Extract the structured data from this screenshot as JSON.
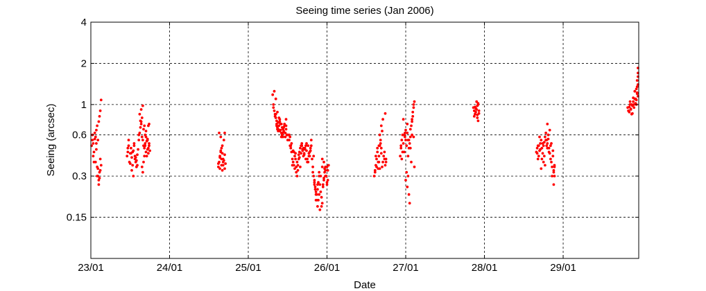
{
  "chart_data": {
    "type": "scatter",
    "title": "Seeing time series (Jan 2006)",
    "xlabel": "Date",
    "ylabel": "Seeing (arcsec)",
    "x_unit": "days (Jan 2006, decimal day-of-month)",
    "xlim": [
      23.0,
      29.96
    ],
    "ylim": [
      0.075,
      4
    ],
    "y_scale": "log2",
    "x_ticks": [
      {
        "value": 23,
        "label": "23/01"
      },
      {
        "value": 24,
        "label": "24/01"
      },
      {
        "value": 25,
        "label": "25/01"
      },
      {
        "value": 26,
        "label": "26/01"
      },
      {
        "value": 27,
        "label": "27/01"
      },
      {
        "value": 28,
        "label": "28/01"
      },
      {
        "value": 29,
        "label": "29/01"
      }
    ],
    "y_ticks": [
      {
        "value": 0.15,
        "label": "0.15"
      },
      {
        "value": 0.3,
        "label": "0.3"
      },
      {
        "value": 0.6,
        "label": "0.6"
      },
      {
        "value": 1,
        "label": "1"
      },
      {
        "value": 2,
        "label": "2"
      },
      {
        "value": 4,
        "label": "4"
      }
    ],
    "grid": true,
    "marker_color": "#ff0000",
    "series": [
      {
        "x": [
          23.01,
          23.02,
          23.03,
          23.04,
          23.05,
          23.06,
          23.07,
          23.08,
          23.09,
          23.1,
          23.11,
          23.12,
          23.02,
          23.04,
          23.06,
          23.08,
          23.1,
          23.12,
          23.13,
          23.03,
          23.05,
          23.07,
          23.09,
          23.11,
          23.08,
          23.1,
          23.11,
          23.12,
          23.13,
          23.07,
          23.09,
          23.46,
          23.47,
          23.48,
          23.49,
          23.5,
          23.51,
          23.52,
          23.53,
          23.54,
          23.55,
          23.56,
          23.57,
          23.58,
          23.59,
          23.6,
          23.48,
          23.5,
          23.52,
          23.54,
          23.56,
          23.58,
          23.47,
          23.51,
          23.55,
          23.59,
          23.53,
          23.57,
          23.61,
          23.62,
          23.63,
          23.64,
          23.65,
          23.66,
          23.67,
          23.68,
          23.69,
          23.7,
          23.71,
          23.72,
          23.73,
          23.74,
          23.75,
          23.62,
          23.64,
          23.66,
          23.68,
          23.7,
          23.72,
          23.74,
          23.63,
          23.65,
          23.67,
          23.69,
          23.71,
          23.73,
          23.65,
          23.67,
          23.66,
          23.68,
          23.64,
          23.7,
          23.72,
          23.73,
          23.74,
          23.61,
          23.69,
          24.62,
          24.63,
          24.64,
          24.65,
          24.66,
          24.67,
          24.68,
          24.69,
          24.7,
          24.71,
          24.63,
          24.65,
          24.67,
          24.69,
          24.64,
          24.66,
          24.68,
          24.7,
          24.65,
          24.67,
          24.66,
          24.62,
          24.7,
          24.64,
          24.68,
          25.31,
          25.32,
          25.33,
          25.34,
          25.35,
          25.36,
          25.37,
          25.38,
          25.39,
          25.4,
          25.41,
          25.42,
          25.43,
          25.44,
          25.45,
          25.46,
          25.47,
          25.48,
          25.49,
          25.5,
          25.32,
          25.34,
          25.36,
          25.38,
          25.4,
          25.42,
          25.44,
          25.46,
          25.48,
          25.5,
          25.33,
          25.35,
          25.37,
          25.39,
          25.41,
          25.43,
          25.45,
          25.47,
          25.36,
          25.38,
          25.4,
          25.37,
          25.39,
          25.35,
          25.42,
          25.44,
          25.48,
          25.52,
          25.53,
          25.54,
          25.55,
          25.56,
          25.57,
          25.58,
          25.59,
          25.6,
          25.61,
          25.62,
          25.63,
          25.64,
          25.65,
          25.66,
          25.67,
          25.68,
          25.69,
          25.7,
          25.71,
          25.72,
          25.73,
          25.74,
          25.75,
          25.76,
          25.77,
          25.78,
          25.79,
          25.8,
          25.53,
          25.55,
          25.57,
          25.59,
          25.61,
          25.63,
          25.65,
          25.67,
          25.69,
          25.71,
          25.73,
          25.75,
          25.77,
          25.79,
          25.54,
          25.58,
          25.62,
          25.66,
          25.7,
          25.74,
          25.78,
          25.56,
          25.6,
          25.64,
          25.68,
          25.72,
          25.76,
          25.52,
          25.8,
          25.81,
          25.82,
          25.83,
          25.84,
          25.85,
          25.86,
          25.87,
          25.88,
          25.89,
          25.9,
          25.91,
          25.92,
          25.93,
          25.94,
          25.95,
          25.96,
          25.97,
          25.98,
          25.99,
          26.0,
          26.01,
          26.02,
          25.82,
          25.84,
          25.86,
          25.88,
          25.9,
          25.92,
          25.94,
          25.96,
          25.98,
          26.0,
          25.83,
          25.85,
          25.87,
          25.89,
          25.91,
          25.93,
          25.95,
          25.97,
          25.99,
          26.01,
          25.86,
          25.88,
          25.84,
          25.9,
          25.94,
          25.96,
          26.0,
          25.98,
          26.6,
          26.61,
          26.62,
          26.63,
          26.64,
          26.65,
          26.66,
          26.67,
          26.68,
          26.69,
          26.7,
          26.71,
          26.72,
          26.73,
          26.74,
          26.75,
          26.61,
          26.63,
          26.65,
          26.67,
          26.69,
          26.71,
          26.73,
          26.75,
          26.62,
          26.66,
          26.7,
          26.74,
          26.67,
          26.68,
          26.66,
          26.69,
          26.64,
          26.93,
          26.94,
          26.95,
          26.96,
          26.97,
          26.98,
          26.99,
          27.0,
          27.01,
          27.02,
          27.03,
          27.04,
          27.05,
          27.06,
          27.07,
          27.08,
          27.09,
          27.1,
          27.11,
          26.94,
          26.96,
          26.98,
          27.0,
          27.02,
          27.04,
          27.06,
          27.08,
          27.1,
          26.95,
          26.99,
          27.03,
          27.07,
          27.11,
          27.0,
          27.02,
          27.04,
          27.01,
          27.03,
          27.06,
          27.08,
          27.09,
          27.1,
          27.05,
          26.97,
          27.86,
          27.87,
          27.88,
          27.89,
          27.9,
          27.91,
          27.92,
          27.93,
          27.87,
          27.89,
          27.91,
          27.93,
          27.88,
          27.9,
          27.92,
          27.91,
          27.92,
          28.66,
          28.67,
          28.68,
          28.69,
          28.7,
          28.71,
          28.72,
          28.73,
          28.74,
          28.75,
          28.76,
          28.77,
          28.78,
          28.79,
          28.8,
          28.81,
          28.82,
          28.83,
          28.84,
          28.85,
          28.86,
          28.87,
          28.88,
          28.89,
          28.67,
          28.69,
          28.71,
          28.73,
          28.75,
          28.77,
          28.79,
          28.81,
          28.83,
          28.85,
          28.87,
          28.89,
          28.68,
          28.72,
          28.76,
          28.8,
          28.84,
          28.88,
          28.8,
          28.78,
          28.82,
          28.86,
          28.88,
          28.89,
          28.7,
          28.74,
          29.82,
          29.83,
          29.84,
          29.85,
          29.86,
          29.87,
          29.88,
          29.89,
          29.9,
          29.91,
          29.92,
          29.93,
          29.94,
          29.95,
          29.83,
          29.85,
          29.87,
          29.89,
          29.91,
          29.93,
          29.95,
          29.84,
          29.88,
          29.92,
          29.94,
          29.93,
          29.94,
          29.95,
          29.95,
          29.95,
          29.94,
          29.9,
          29.86
        ],
        "y": [
          0.5,
          0.55,
          0.42,
          0.38,
          0.62,
          0.58,
          0.52,
          0.35,
          0.3,
          0.28,
          0.32,
          0.4,
          0.6,
          0.45,
          0.38,
          0.3,
          0.26,
          0.33,
          0.36,
          0.52,
          0.56,
          0.47,
          0.34,
          0.29,
          0.7,
          0.75,
          0.82,
          0.9,
          1.08,
          0.65,
          0.55,
          0.42,
          0.45,
          0.5,
          0.38,
          0.44,
          0.48,
          0.41,
          0.36,
          0.46,
          0.52,
          0.4,
          0.38,
          0.35,
          0.43,
          0.47,
          0.55,
          0.37,
          0.33,
          0.3,
          0.42,
          0.39,
          0.48,
          0.44,
          0.5,
          0.36,
          0.45,
          0.41,
          0.6,
          0.62,
          0.68,
          0.72,
          0.58,
          0.55,
          0.5,
          0.48,
          0.52,
          0.45,
          0.42,
          0.47,
          0.44,
          0.5,
          0.46,
          0.85,
          0.92,
          0.98,
          0.7,
          0.64,
          0.56,
          0.52,
          0.76,
          0.8,
          0.66,
          0.6,
          0.54,
          0.48,
          0.35,
          0.38,
          0.32,
          0.42,
          0.75,
          0.58,
          0.55,
          0.7,
          0.72,
          0.55,
          0.5,
          0.35,
          0.38,
          0.42,
          0.45,
          0.4,
          0.33,
          0.36,
          0.39,
          0.43,
          0.37,
          0.62,
          0.58,
          0.5,
          0.55,
          0.34,
          0.36,
          0.4,
          0.34,
          0.46,
          0.44,
          0.48,
          0.37,
          0.62,
          0.41,
          0.38,
          1.18,
          1.0,
          0.9,
          0.85,
          0.8,
          0.72,
          0.68,
          0.66,
          0.7,
          0.75,
          0.65,
          0.62,
          0.6,
          0.58,
          0.68,
          0.72,
          0.62,
          0.66,
          0.6,
          0.55,
          0.95,
          0.82,
          0.76,
          0.74,
          0.64,
          0.58,
          0.62,
          0.7,
          0.78,
          0.6,
          1.25,
          1.1,
          0.88,
          0.8,
          0.72,
          0.68,
          0.64,
          0.58,
          0.7,
          0.64,
          0.78,
          0.66,
          0.74,
          0.85,
          0.72,
          0.66,
          0.7,
          0.55,
          0.5,
          0.48,
          0.45,
          0.4,
          0.38,
          0.36,
          0.42,
          0.44,
          0.35,
          0.38,
          0.33,
          0.4,
          0.45,
          0.48,
          0.5,
          0.52,
          0.46,
          0.42,
          0.44,
          0.48,
          0.5,
          0.46,
          0.4,
          0.38,
          0.42,
          0.45,
          0.48,
          0.5,
          0.58,
          0.52,
          0.46,
          0.34,
          0.32,
          0.36,
          0.41,
          0.44,
          0.47,
          0.43,
          0.4,
          0.38,
          0.44,
          0.46,
          0.5,
          0.45,
          0.3,
          0.35,
          0.48,
          0.52,
          0.42,
          0.36,
          0.4,
          0.43,
          0.5,
          0.47,
          0.5,
          0.6,
          0.55,
          0.4,
          0.35,
          0.3,
          0.28,
          0.25,
          0.22,
          0.2,
          0.24,
          0.27,
          0.3,
          0.26,
          0.23,
          0.21,
          0.19,
          0.25,
          0.28,
          0.32,
          0.35,
          0.3,
          0.27,
          0.33,
          0.36,
          0.32,
          0.26,
          0.2,
          0.18,
          0.22,
          0.3,
          0.35,
          0.38,
          0.3,
          0.26,
          0.42,
          0.24,
          0.22,
          0.2,
          0.17,
          0.18,
          0.26,
          0.34,
          0.3,
          0.28,
          0.23,
          0.26,
          0.27,
          0.32,
          0.4,
          0.29,
          0.35,
          0.33,
          0.3,
          0.33,
          0.36,
          0.4,
          0.45,
          0.38,
          0.42,
          0.5,
          0.55,
          0.48,
          0.35,
          0.38,
          0.42,
          0.4,
          0.36,
          0.38,
          0.32,
          0.35,
          0.34,
          0.6,
          0.7,
          0.78,
          0.45,
          0.4,
          0.42,
          0.5,
          0.64,
          0.86,
          0.34,
          0.52,
          0.38,
          0.44,
          0.48,
          0.42,
          0.48,
          0.55,
          0.6,
          0.52,
          0.45,
          0.58,
          0.55,
          0.5,
          0.62,
          0.55,
          0.48,
          0.52,
          0.58,
          0.7,
          0.78,
          0.88,
          0.95,
          1.05,
          0.5,
          0.45,
          0.6,
          0.65,
          0.72,
          0.55,
          0.48,
          0.6,
          0.58,
          0.4,
          0.62,
          0.42,
          0.38,
          0.35,
          0.28,
          0.25,
          0.22,
          0.32,
          0.3,
          0.66,
          0.75,
          0.82,
          1.0,
          0.19,
          0.78,
          0.95,
          0.9,
          0.85,
          0.88,
          0.92,
          0.98,
          1.02,
          0.86,
          0.82,
          0.94,
          0.8,
          0.9,
          0.96,
          1.05,
          1.0,
          0.84,
          0.76,
          0.45,
          0.48,
          0.5,
          0.42,
          0.46,
          0.52,
          0.55,
          0.48,
          0.44,
          0.5,
          0.53,
          0.58,
          0.55,
          0.5,
          0.52,
          0.56,
          0.48,
          0.44,
          0.4,
          0.38,
          0.35,
          0.42,
          0.33,
          0.3,
          0.44,
          0.5,
          0.47,
          0.4,
          0.38,
          0.36,
          0.55,
          0.6,
          0.65,
          0.52,
          0.46,
          0.35,
          0.4,
          0.34,
          0.42,
          0.48,
          0.5,
          0.32,
          0.72,
          0.62,
          0.45,
          0.3,
          0.26,
          0.36,
          0.58,
          0.52,
          0.95,
          0.9,
          0.88,
          1.0,
          0.92,
          0.85,
          0.98,
          1.05,
          0.95,
          1.1,
          1.02,
          1.08,
          1.2,
          1.15,
          0.9,
          1.05,
          1.0,
          1.12,
          1.25,
          1.3,
          1.6,
          0.96,
          0.86,
          1.1,
          1.5,
          1.0,
          1.22,
          1.85,
          1.4,
          1.7,
          1.35,
          1.0,
          0.93
        ]
      }
    ]
  }
}
